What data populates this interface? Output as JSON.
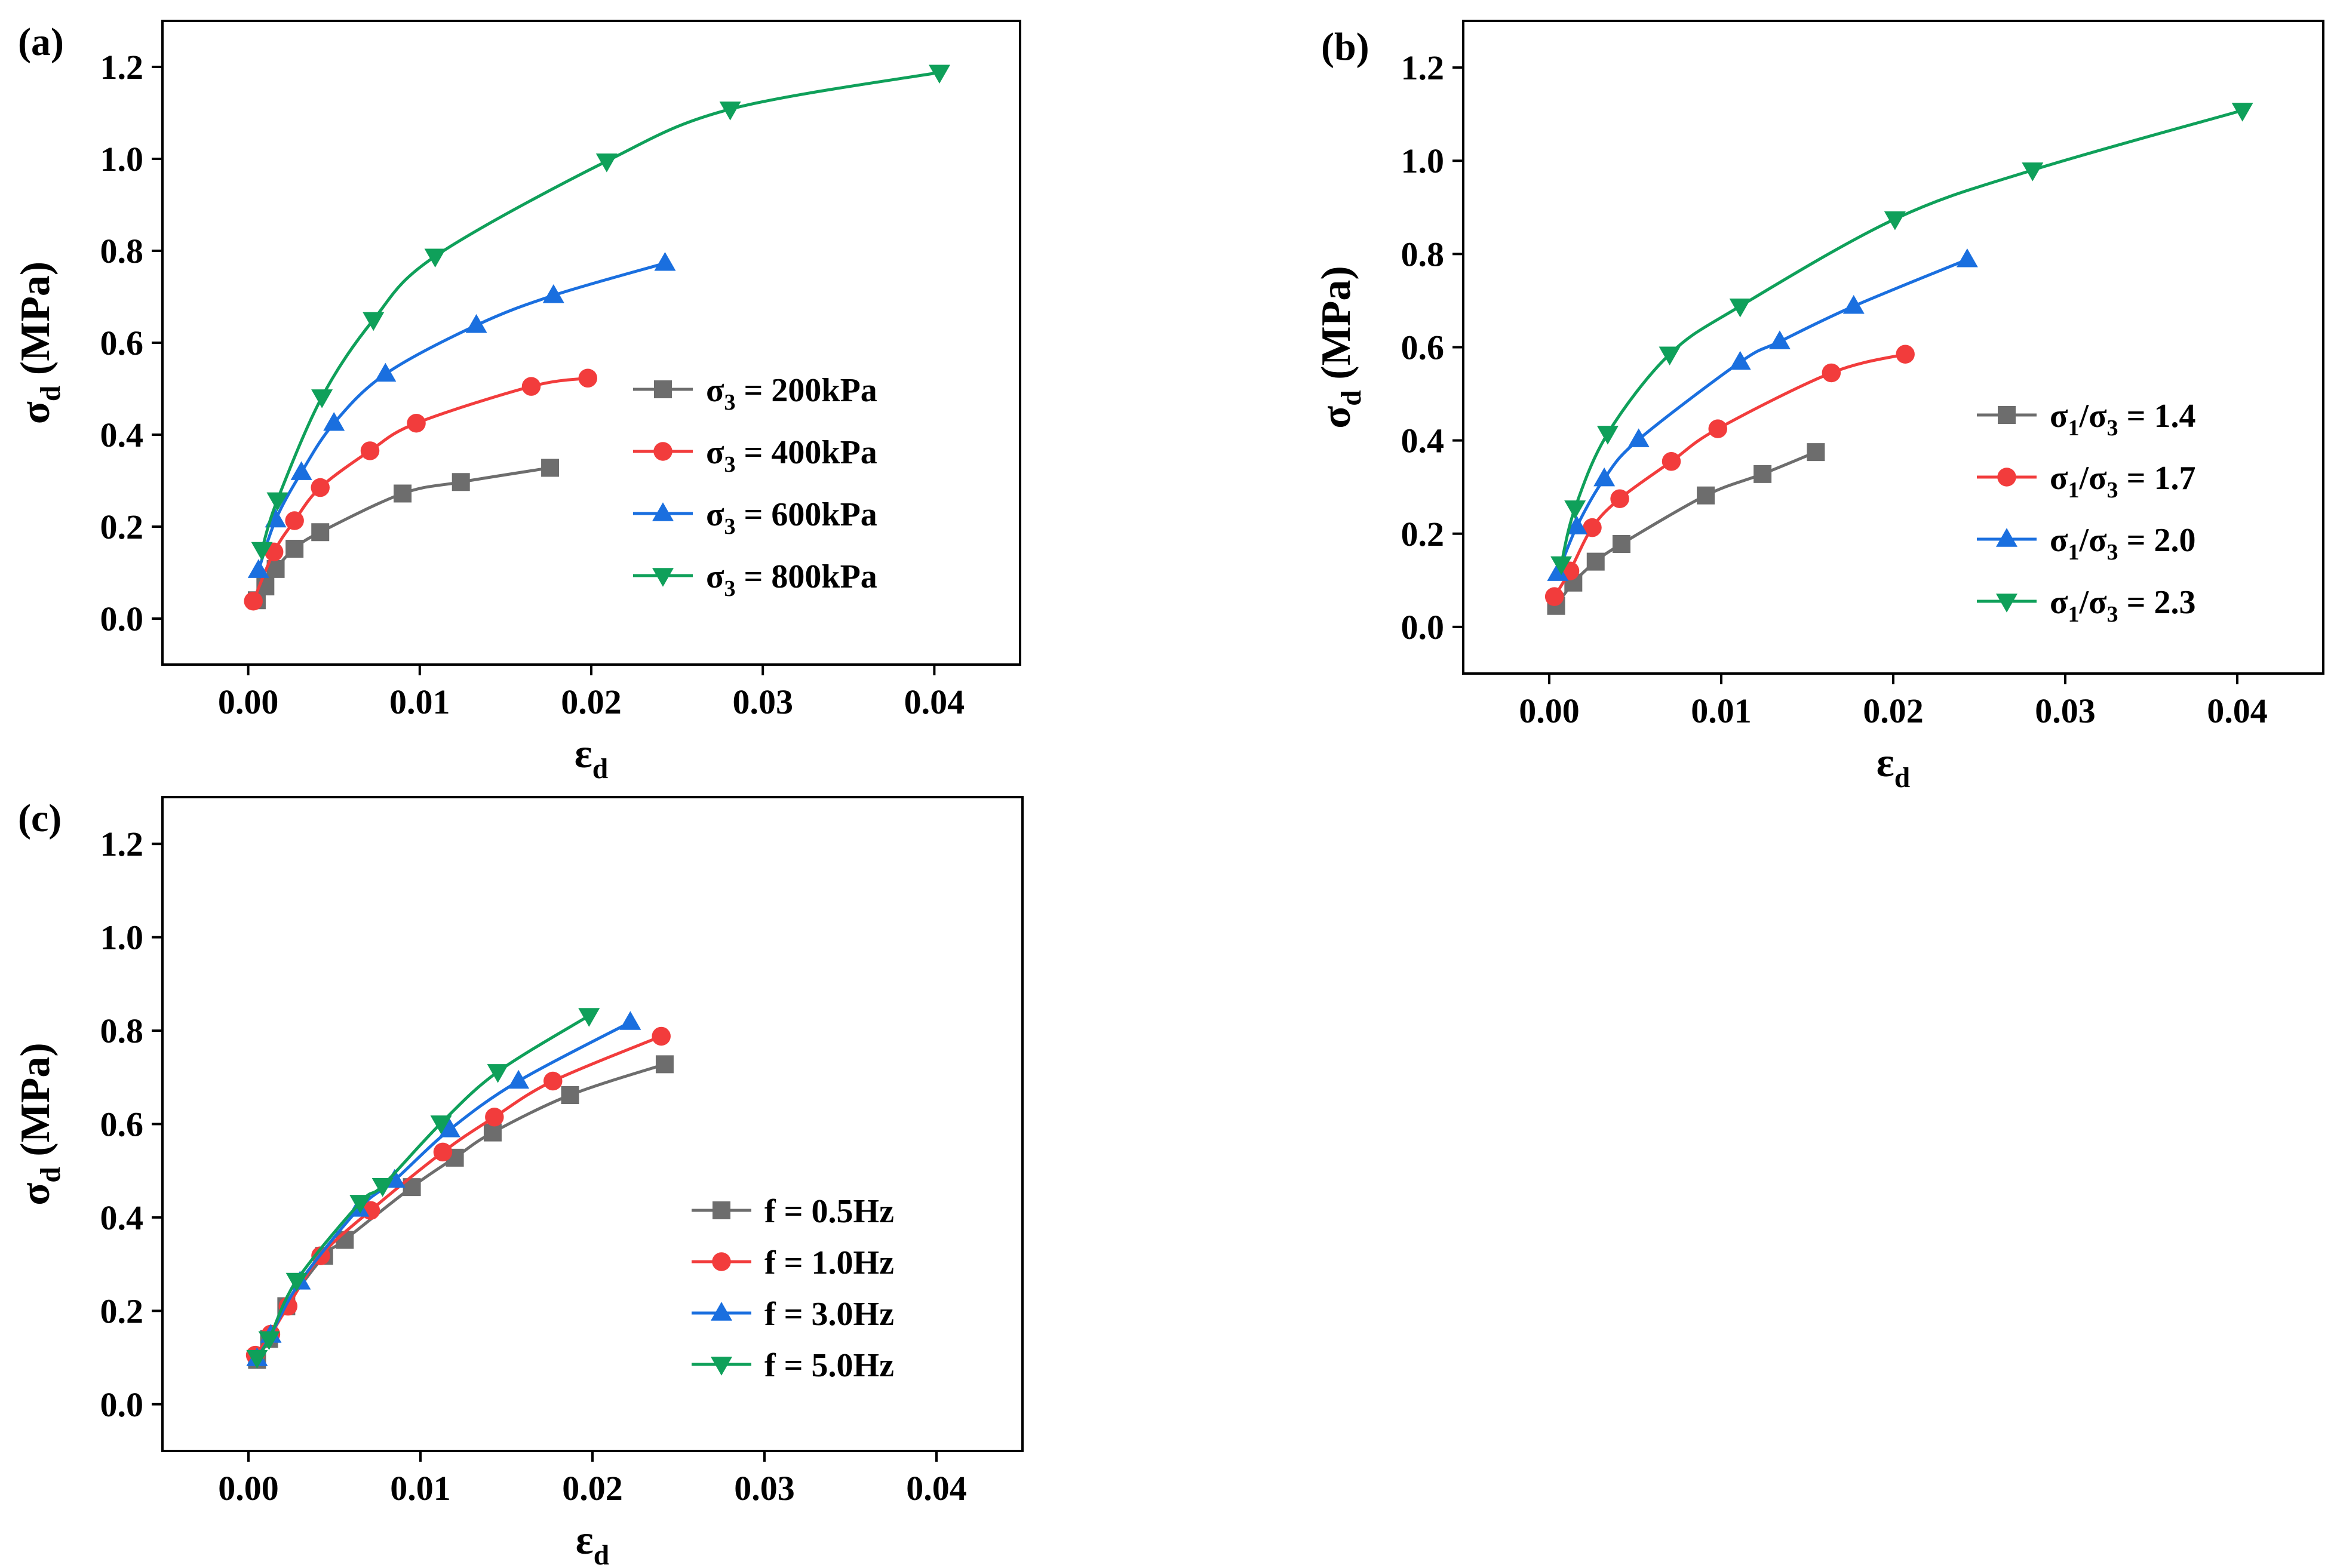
{
  "colors": {
    "gray": "#6d6d6d",
    "red": "#f23c3c",
    "blue": "#1a6fdf",
    "green": "#0fa05a"
  },
  "chart_data": [
    {
      "id": "a",
      "panel_label": "(a)",
      "type": "line",
      "xlabel": {
        "main": "ε",
        "sub": "d"
      },
      "ylabel": {
        "main": "σ",
        "sub": "d",
        "rest": " (MPa)"
      },
      "xlim": [
        -0.005,
        0.045
      ],
      "ylim": [
        -0.1,
        1.3
      ],
      "xticks": [
        0.0,
        0.01,
        0.02,
        0.03,
        0.04
      ],
      "xtick_labels": [
        "0.00",
        "0.01",
        "0.02",
        "0.03",
        "0.04"
      ],
      "yticks": [
        0.0,
        0.2,
        0.4,
        0.6,
        0.8,
        1.0,
        1.2
      ],
      "ytick_labels": [
        "0.0",
        "0.2",
        "0.4",
        "0.6",
        "0.8",
        "1.0",
        "1.2"
      ],
      "legend_position": "center-right",
      "series": [
        {
          "legend": {
            "pre": "σ",
            "sub": "3",
            "post": " = 200kPa"
          },
          "color": "gray",
          "marker": "square",
          "x": [
            0.0005,
            0.001,
            0.0016,
            0.0027,
            0.0042,
            0.009,
            0.0124,
            0.0176
          ],
          "y": [
            0.04,
            0.07,
            0.108,
            0.152,
            0.188,
            0.272,
            0.297,
            0.328
          ]
        },
        {
          "legend": {
            "pre": "σ",
            "sub": "3",
            "post": " = 400kPa"
          },
          "color": "red",
          "marker": "circle",
          "x": [
            0.0003,
            0.0015,
            0.0027,
            0.0042,
            0.0071,
            0.0098,
            0.0165,
            0.0198
          ],
          "y": [
            0.038,
            0.145,
            0.213,
            0.285,
            0.365,
            0.425,
            0.505,
            0.523
          ]
        },
        {
          "legend": {
            "pre": "σ",
            "sub": "3",
            "post": " = 600kPa"
          },
          "color": "blue",
          "marker": "triangle-up",
          "x": [
            0.0006,
            0.0016,
            0.0031,
            0.005,
            0.008,
            0.0133,
            0.0178,
            0.0243
          ],
          "y": [
            0.105,
            0.215,
            0.318,
            0.425,
            0.532,
            0.638,
            0.703,
            0.773
          ]
        },
        {
          "legend": {
            "pre": "σ",
            "sub": "3",
            "post": " = 800kPa"
          },
          "color": "green",
          "marker": "triangle-down",
          "x": [
            0.0008,
            0.0017,
            0.0043,
            0.0073,
            0.0109,
            0.0209,
            0.0281,
            0.0403
          ],
          "y": [
            0.15,
            0.258,
            0.482,
            0.65,
            0.788,
            0.995,
            1.108,
            1.188
          ]
        }
      ]
    },
    {
      "id": "b",
      "panel_label": "(b)",
      "type": "line",
      "xlabel": {
        "main": "ε",
        "sub": "d"
      },
      "ylabel": {
        "main": "σ",
        "sub": "d",
        "rest": " (MPa)"
      },
      "xlim": [
        -0.005,
        0.045
      ],
      "ylim": [
        -0.1,
        1.3
      ],
      "xticks": [
        0.0,
        0.01,
        0.02,
        0.03,
        0.04
      ],
      "xtick_labels": [
        "0.00",
        "0.01",
        "0.02",
        "0.03",
        "0.04"
      ],
      "yticks": [
        0.0,
        0.2,
        0.4,
        0.6,
        0.8,
        1.0,
        1.2
      ],
      "ytick_labels": [
        "0.0",
        "0.2",
        "0.4",
        "0.6",
        "0.8",
        "1.0",
        "1.2"
      ],
      "legend_position": "center-right",
      "series": [
        {
          "legend": {
            "pre": "σ",
            "sub": "1",
            "mid": "/σ",
            "sub2": "3",
            "post": " = 1.4"
          },
          "color": "gray",
          "marker": "square",
          "x": [
            0.0004,
            0.0014,
            0.0027,
            0.0042,
            0.0091,
            0.0124,
            0.0155
          ],
          "y": [
            0.045,
            0.095,
            0.14,
            0.178,
            0.282,
            0.328,
            0.375
          ]
        },
        {
          "legend": {
            "pre": "σ",
            "sub": "1",
            "mid": "/σ",
            "sub2": "3",
            "post": " = 1.7"
          },
          "color": "red",
          "marker": "circle",
          "x": [
            0.0003,
            0.0012,
            0.0025,
            0.0041,
            0.0071,
            0.0098,
            0.0164,
            0.0207
          ],
          "y": [
            0.065,
            0.12,
            0.213,
            0.275,
            0.355,
            0.425,
            0.545,
            0.585
          ]
        },
        {
          "legend": {
            "pre": "σ",
            "sub": "1",
            "mid": "/σ",
            "sub2": "3",
            "post": " = 2.0"
          },
          "color": "blue",
          "marker": "triangle-up",
          "x": [
            0.0005,
            0.0016,
            0.0032,
            0.0052,
            0.0111,
            0.0134,
            0.0177,
            0.0243
          ],
          "y": [
            0.115,
            0.215,
            0.318,
            0.402,
            0.568,
            0.612,
            0.688,
            0.788
          ]
        },
        {
          "legend": {
            "pre": "σ",
            "sub": "1",
            "mid": "/σ",
            "sub2": "3",
            "post": " = 2.3"
          },
          "color": "green",
          "marker": "triangle-down",
          "x": [
            0.0007,
            0.0015,
            0.0034,
            0.007,
            0.0111,
            0.0201,
            0.0281,
            0.0403
          ],
          "y": [
            0.135,
            0.255,
            0.415,
            0.585,
            0.688,
            0.875,
            0.98,
            1.108
          ]
        }
      ]
    },
    {
      "id": "c",
      "panel_label": "(c)",
      "type": "line",
      "xlabel": {
        "main": "ε",
        "sub": "d"
      },
      "ylabel": {
        "main": "σ",
        "sub": "d",
        "rest": " (MPa)"
      },
      "xlim": [
        -0.005,
        0.045
      ],
      "ylim": [
        -0.1,
        1.3
      ],
      "xticks": [
        0.0,
        0.01,
        0.02,
        0.03,
        0.04
      ],
      "xtick_labels": [
        "0.00",
        "0.01",
        "0.02",
        "0.03",
        "0.04"
      ],
      "yticks": [
        0.0,
        0.2,
        0.4,
        0.6,
        0.8,
        1.0,
        1.2
      ],
      "ytick_labels": [
        "0.0",
        "0.2",
        "0.4",
        "0.6",
        "0.8",
        "1.0",
        "1.2"
      ],
      "legend_position": "lower-right",
      "series": [
        {
          "legend": {
            "pre": "f = 0.5Hz"
          },
          "color": "gray",
          "marker": "square",
          "x": [
            0.0005,
            0.0012,
            0.0022,
            0.0044,
            0.0056,
            0.0095,
            0.012,
            0.0142,
            0.0187,
            0.0242
          ],
          "y": [
            0.095,
            0.14,
            0.21,
            0.318,
            0.352,
            0.465,
            0.528,
            0.582,
            0.662,
            0.728
          ]
        },
        {
          "legend": {
            "pre": "f = 1.0Hz"
          },
          "color": "red",
          "marker": "circle",
          "x": [
            0.0004,
            0.0013,
            0.0023,
            0.0042,
            0.0071,
            0.0113,
            0.0143,
            0.0177,
            0.024
          ],
          "y": [
            0.105,
            0.15,
            0.21,
            0.318,
            0.415,
            0.54,
            0.615,
            0.692,
            0.788
          ]
        },
        {
          "legend": {
            "pre": "f = 3.0Hz"
          },
          "color": "blue",
          "marker": "triangle-up",
          "x": [
            0.0005,
            0.0013,
            0.003,
            0.0064,
            0.0085,
            0.0117,
            0.0157,
            0.0222
          ],
          "y": [
            0.098,
            0.148,
            0.262,
            0.418,
            0.48,
            0.588,
            0.692,
            0.818
          ]
        },
        {
          "legend": {
            "pre": "f = 5.0Hz"
          },
          "color": "green",
          "marker": "triangle-down",
          "x": [
            0.0005,
            0.0012,
            0.0028,
            0.0065,
            0.0078,
            0.0112,
            0.0145,
            0.0198
          ],
          "y": [
            0.1,
            0.14,
            0.265,
            0.432,
            0.468,
            0.602,
            0.712,
            0.832
          ]
        }
      ]
    }
  ]
}
